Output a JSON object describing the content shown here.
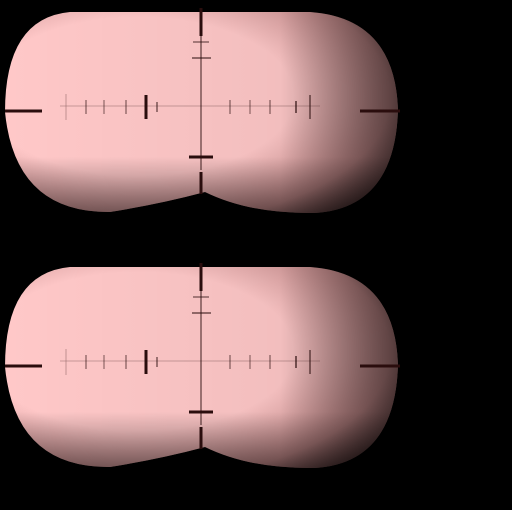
{
  "background_color": "#000000",
  "lens_color_center": "#ffc8c8",
  "lens_color_edge": "#c68c8c",
  "lens_shadow_color": "#3a2424",
  "reticle_color": "#2a0d0d",
  "reticle_faint_color": "#9a6e6e",
  "views": [
    {
      "id": "top-view"
    },
    {
      "id": "bottom-view"
    }
  ]
}
